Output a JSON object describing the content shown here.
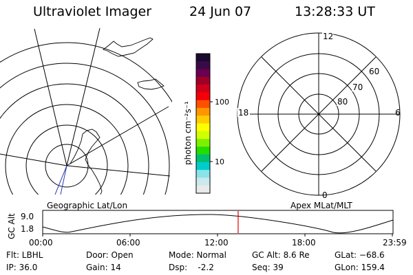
{
  "header": {
    "title": "Ultraviolet Imager",
    "date": "24 Jun 07",
    "time": "13:28:33 UT"
  },
  "colorbar": {
    "unit_label": "photon cm⁻²s⁻¹",
    "ticks": [
      "100",
      "10"
    ],
    "colors": [
      "#1a0a30",
      "#3a0a48",
      "#6a0050",
      "#a00028",
      "#d0001a",
      "#f40008",
      "#ff5000",
      "#ff9600",
      "#ffcc00",
      "#ffff00",
      "#cfff00",
      "#7df000",
      "#22dd00",
      "#00c070",
      "#00cccc",
      "#88e4e8",
      "#cce8ea",
      "#e8eaea"
    ]
  },
  "left_map": {
    "label": "Geographic Lat/Lon"
  },
  "right_map": {
    "label": "Apex MLat/MLT",
    "mlt_labels": {
      "top": "12",
      "left": "18",
      "right": "6",
      "bottom": "0"
    },
    "lat_labels": [
      "60",
      "70",
      "80"
    ]
  },
  "altitude_plot": {
    "ylabel": "GC Alt",
    "yticks": [
      "9.0",
      "1.8"
    ],
    "xticks": [
      "00:00",
      "06:00",
      "12:00",
      "18:00",
      "23:59"
    ],
    "marker_color": "#e00000"
  },
  "info": {
    "flt": "Flt: LBHL",
    "ip": "IP: 36.0",
    "door": "Door: Open",
    "gain": "Gain: 14",
    "mode": "Mode: Normal",
    "dsp": "Dsp:    -2.2",
    "gc_alt": "GC Alt: 8.6 Re",
    "seq": "Seq: 39",
    "glat": "GLat: −68.6",
    "glon": "GLon: 159.4"
  }
}
